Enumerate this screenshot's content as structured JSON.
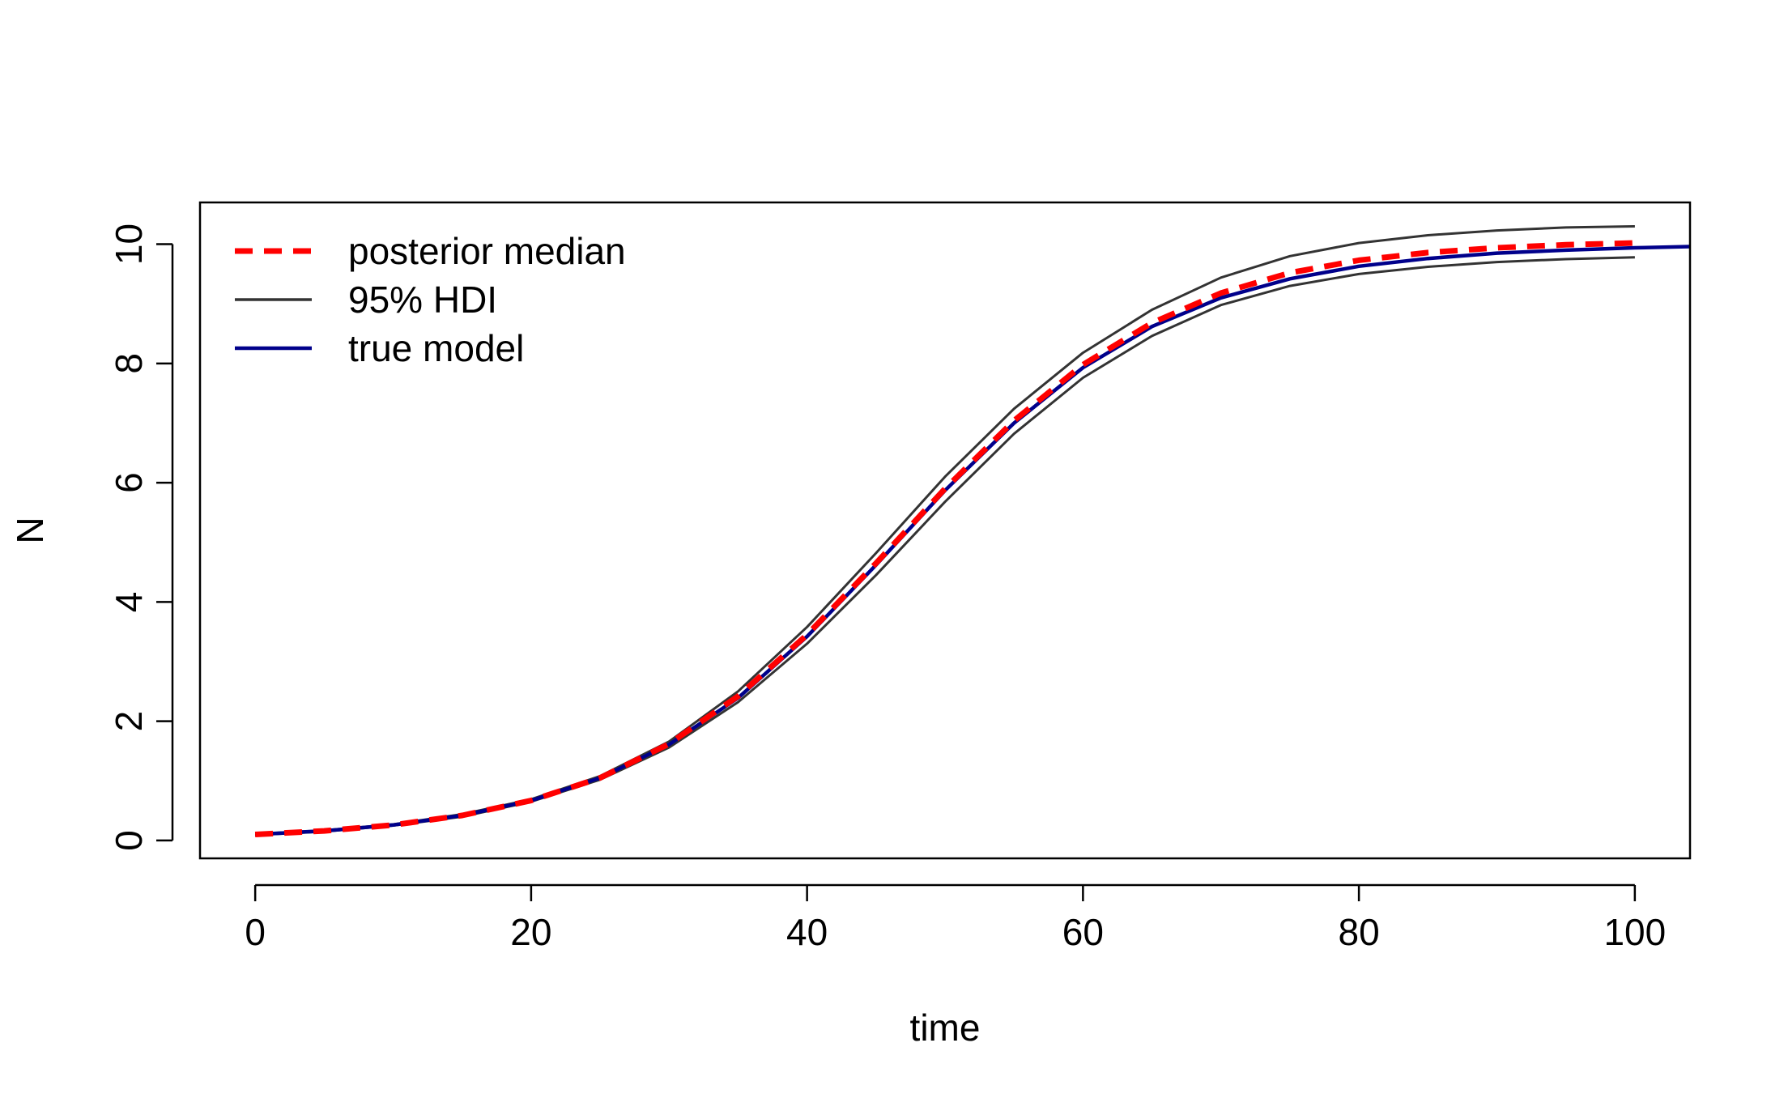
{
  "chart_data": {
    "type": "line",
    "xlabel": "time",
    "ylabel": "N",
    "xlim": [
      -4,
      104
    ],
    "ylim": [
      -0.3,
      10.7
    ],
    "xticks": [
      0,
      20,
      40,
      60,
      80,
      100
    ],
    "yticks": [
      0,
      2,
      4,
      6,
      8,
      10
    ],
    "grid": false,
    "legend_position": "top-left",
    "series": [
      {
        "key": "median",
        "name": "posterior median",
        "color": "#ff0000",
        "dash": "dashed",
        "x": [
          0,
          5,
          10,
          15,
          20,
          25,
          30,
          35,
          40,
          45,
          50,
          55,
          60,
          65,
          70,
          75,
          80,
          85,
          90,
          95,
          100
        ],
        "y": [
          0.1,
          0.16,
          0.26,
          0.42,
          0.67,
          1.05,
          1.62,
          2.42,
          3.45,
          4.65,
          5.9,
          7.04,
          7.98,
          8.68,
          9.18,
          9.52,
          9.73,
          9.86,
          9.94,
          9.99,
          10.02
        ]
      },
      {
        "key": "hdi_upper",
        "name": "95% HDI",
        "color": "#333333",
        "dash": "solid",
        "x": [
          0,
          5,
          10,
          15,
          20,
          25,
          30,
          35,
          40,
          45,
          50,
          55,
          60,
          65,
          70,
          75,
          80,
          85,
          90,
          95,
          100
        ],
        "y": [
          0.11,
          0.17,
          0.27,
          0.44,
          0.69,
          1.08,
          1.66,
          2.5,
          3.58,
          4.82,
          6.1,
          7.24,
          8.18,
          8.9,
          9.44,
          9.8,
          10.02,
          10.15,
          10.23,
          10.28,
          10.3
        ]
      },
      {
        "key": "hdi_lower",
        "name": "",
        "color": "#333333",
        "dash": "solid",
        "x": [
          0,
          5,
          10,
          15,
          20,
          25,
          30,
          35,
          40,
          45,
          50,
          55,
          60,
          65,
          70,
          75,
          80,
          85,
          90,
          95,
          100
        ],
        "y": [
          0.09,
          0.15,
          0.25,
          0.4,
          0.65,
          1.02,
          1.56,
          2.32,
          3.3,
          4.45,
          5.68,
          6.82,
          7.76,
          8.46,
          8.98,
          9.3,
          9.5,
          9.62,
          9.7,
          9.75,
          9.78
        ]
      },
      {
        "key": "true",
        "name": "true model",
        "color": "#00008b",
        "dash": "solid",
        "x": [
          0,
          5,
          10,
          15,
          20,
          25,
          30,
          35,
          40,
          45,
          50,
          55,
          60,
          65,
          70,
          75,
          80,
          85,
          90,
          95,
          100,
          104
        ],
        "y": [
          0.1,
          0.16,
          0.26,
          0.42,
          0.67,
          1.05,
          1.61,
          2.39,
          3.42,
          4.62,
          5.87,
          7.0,
          7.93,
          8.62,
          9.1,
          9.42,
          9.63,
          9.76,
          9.85,
          9.9,
          9.94,
          9.96
        ]
      }
    ],
    "legend": [
      {
        "label": "posterior median",
        "color": "#ff0000",
        "dash": "dashed"
      },
      {
        "label": "95% HDI",
        "color": "#333333",
        "dash": "solid"
      },
      {
        "label": "true model",
        "color": "#00008b",
        "dash": "solid"
      }
    ]
  }
}
